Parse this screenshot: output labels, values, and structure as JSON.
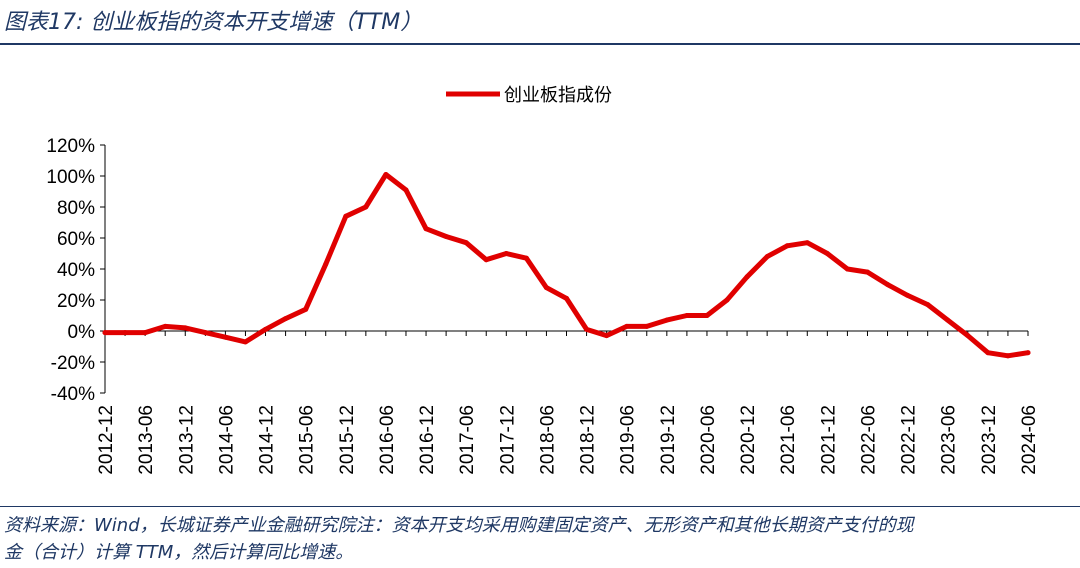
{
  "header": {
    "title": "图表17:  创业板指的资本开支增速（TTM）"
  },
  "footer": {
    "source_line1": "资料来源：Wind，长城证券产业金融研究院注：资本开支均采用购建固定资产、无形资产和其他长期资产支付的现",
    "source_line2": "金（合计）计算 TTM，然后计算同比增速。"
  },
  "colors": {
    "series": "#e00000",
    "title": "#1f3864"
  },
  "chart_data": {
    "type": "line",
    "title": "",
    "xlabel": "",
    "ylabel": "",
    "legend_position": "top-center",
    "grid": false,
    "ylim": [
      -40,
      120
    ],
    "yticks": [
      "120%",
      "100%",
      "80%",
      "60%",
      "40%",
      "20%",
      "0%",
      "-20%",
      "-40%"
    ],
    "xticks": [
      "2012-12",
      "2013-06",
      "2013-12",
      "2014-06",
      "2014-12",
      "2015-06",
      "2015-12",
      "2016-06",
      "2016-12",
      "2017-06",
      "2017-12",
      "2018-06",
      "2018-12",
      "2019-06",
      "2019-12",
      "2020-06",
      "2020-12",
      "2021-06",
      "2021-12",
      "2022-06",
      "2022-12",
      "2023-06",
      "2023-12",
      "2024-06"
    ],
    "x": [
      "2012-12",
      "2013-03",
      "2013-06",
      "2013-09",
      "2013-12",
      "2014-03",
      "2014-06",
      "2014-09",
      "2014-12",
      "2015-03",
      "2015-06",
      "2015-09",
      "2015-12",
      "2016-03",
      "2016-06",
      "2016-09",
      "2016-12",
      "2017-03",
      "2017-06",
      "2017-09",
      "2017-12",
      "2018-03",
      "2018-06",
      "2018-09",
      "2018-12",
      "2019-03",
      "2019-06",
      "2019-09",
      "2019-12",
      "2020-03",
      "2020-06",
      "2020-09",
      "2020-12",
      "2021-03",
      "2021-06",
      "2021-09",
      "2021-12",
      "2022-03",
      "2022-06",
      "2022-09",
      "2022-12",
      "2023-03",
      "2023-06",
      "2023-09",
      "2023-12",
      "2024-03",
      "2024-06"
    ],
    "series": [
      {
        "name": "创业板指成份",
        "values": [
          -1,
          -1,
          -1,
          3,
          2,
          -1,
          -4,
          -7,
          1,
          8,
          14,
          43,
          74,
          80,
          101,
          91,
          66,
          61,
          57,
          46,
          50,
          47,
          28,
          21,
          1,
          -3,
          3,
          3,
          7,
          10,
          10,
          20,
          35,
          48,
          55,
          57,
          50,
          40,
          38,
          30,
          23,
          17,
          7,
          -3,
          -14,
          -16,
          -14
        ]
      }
    ]
  }
}
